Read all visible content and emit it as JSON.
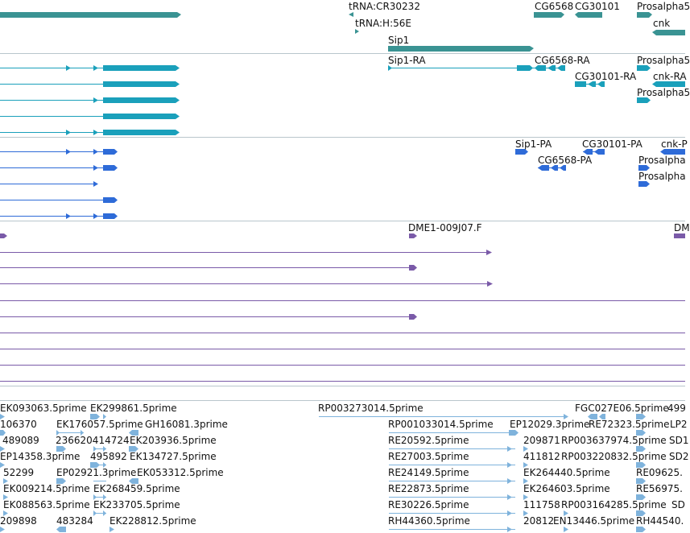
{
  "colors": {
    "gene": "#3a9393",
    "mrna": "#1aa0bb",
    "cds": "#2e6bd8",
    "est": "#7a5aa8",
    "cdna": "#7fb3dc",
    "separator": "#b9c6cc"
  },
  "tracks": {
    "genes": {
      "labels": [
        "tRNA:CR30232",
        "tRNA:H:56E",
        "Sip1",
        "CG6568",
        "CG30101",
        "Prosalpha5",
        "cnk"
      ]
    },
    "transcripts": {
      "labels": [
        "Sip1-RA",
        "CG6568-RA",
        "CG30101-RA",
        "Prosalpha5",
        "cnk-RA",
        "Prosalpha5"
      ]
    },
    "proteins": {
      "labels": [
        "Sip1-PA",
        "CG30101-PA",
        "cnk-P",
        "CG6568-PA",
        "Prosalpha",
        "Prosalpha"
      ]
    },
    "ests": {
      "labels": [
        "DME1-009J07.F",
        "DM"
      ]
    },
    "cdna": {
      "labels": [
        "EK093063.5prime",
        "EK299861.5prime",
        "RP003273014.5prime",
        "FGC027E06.5prime",
        "499",
        "106370",
        "EK176057.5prime",
        "GH16081.3prime",
        "RP001033014.5prime",
        "EP12029.3prime",
        "RE72323.5prime",
        "LP2",
        "489089",
        "236620414724",
        "EK203936.5prime",
        "RE20592.5prime",
        "209871",
        "RP003637974.5prime",
        "SD1",
        "EP14358.3prime",
        "495892",
        "EK134727.5prime",
        "RE27003.5prime",
        "411812",
        "RP003220832.5prime",
        "SD2",
        "52299",
        "EP02921.3prime",
        "EK053312.5prime",
        "RE24149.5prime",
        "EK264440.5prime",
        "RE09625.",
        "EK009214.5prime",
        "EK268459.5prime",
        "RE22873.5prime",
        "EK264603.5prime",
        "RE56975.",
        "EK088563.5prime",
        "EK233705.5prime",
        "RE30226.5prime",
        "111758",
        "RP003164285.5prime",
        "SD",
        "209898",
        "483284",
        "EK228812.5prime",
        "RH44360.5prime",
        "20812",
        "EN13446.5prime",
        "RH44540."
      ]
    }
  }
}
